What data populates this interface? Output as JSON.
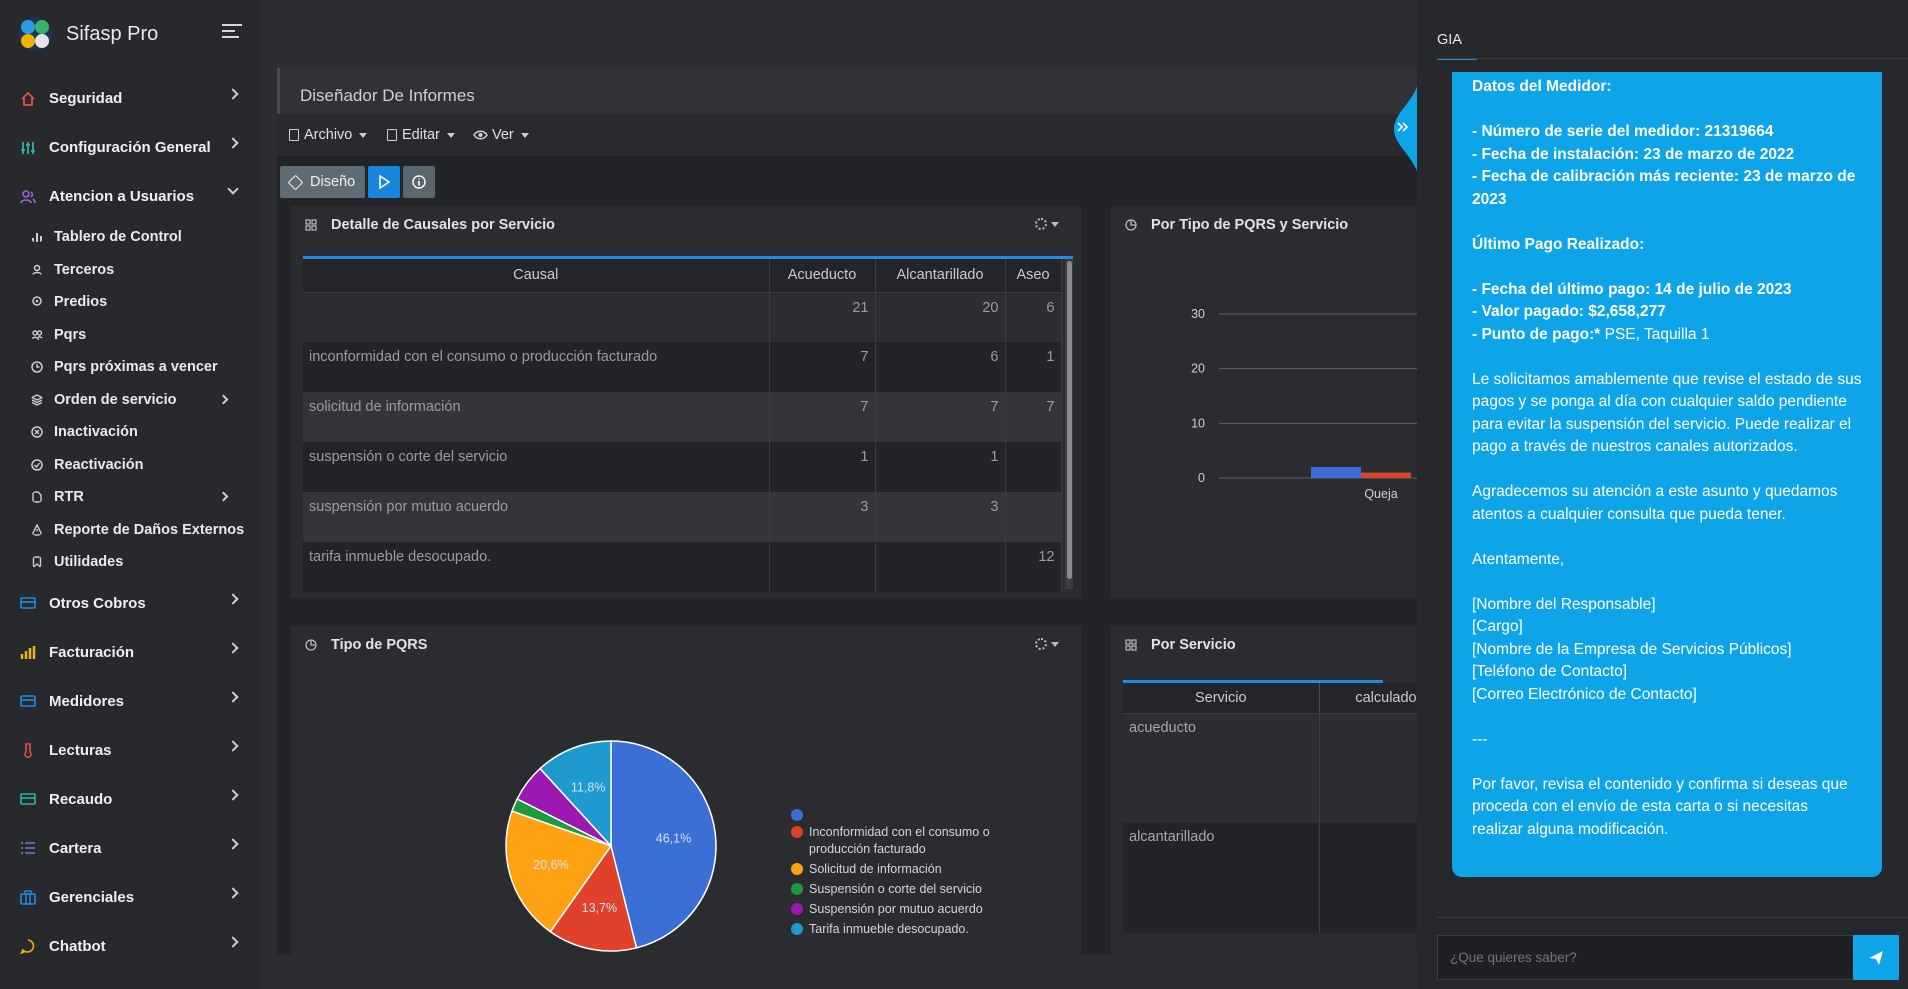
{
  "app": {
    "name": "Sifasp Pro"
  },
  "sidebar": {
    "items": [
      {
        "label": "Seguridad",
        "icon": "home-icon",
        "color": "#e34b4b"
      },
      {
        "label": "Configuración General",
        "icon": "sliders-icon",
        "color": "#2bb5a6"
      },
      {
        "label": "Atencion a Usuarios",
        "icon": "users-icon",
        "color": "#9b6bd6"
      }
    ],
    "sub_items": [
      {
        "label": "Tablero de Control",
        "icon": "bar-chart-icon"
      },
      {
        "label": "Terceros",
        "icon": "user-icon"
      },
      {
        "label": "Predios",
        "icon": "location-pin-icon"
      },
      {
        "label": "Pqrs",
        "icon": "users-icon"
      },
      {
        "label": "Pqrs próximas a vencer",
        "icon": "clock-icon"
      },
      {
        "label": "Orden de servicio",
        "icon": "layers-icon"
      },
      {
        "label": "Inactivación",
        "icon": "x-circle-icon"
      },
      {
        "label": "Reactivación",
        "icon": "check-circle-icon"
      },
      {
        "label": "RTR",
        "icon": "file-icon"
      },
      {
        "label": "Reporte de Daños Externos",
        "icon": "warning-icon"
      },
      {
        "label": "Utilidades",
        "icon": "bookmark-icon"
      }
    ],
    "bottom_items": [
      {
        "label": "Otros Cobros",
        "icon": "card-icon",
        "color": "#1f8ce6"
      },
      {
        "label": "Facturación",
        "icon": "bars-icon",
        "color": "#f0b400"
      },
      {
        "label": "Medidores",
        "icon": "card-icon",
        "color": "#1f8ce6"
      },
      {
        "label": "Lecturas",
        "icon": "thermometer-icon",
        "color": "#e34b4b"
      },
      {
        "label": "Recaudo",
        "icon": "card-icon",
        "color": "#2bb5a6"
      },
      {
        "label": "Cartera",
        "icon": "list-icon",
        "color": "#6b7bd6"
      },
      {
        "label": "Gerenciales",
        "icon": "briefcase-icon",
        "color": "#1f8ce6"
      },
      {
        "label": "Chatbot",
        "icon": "chat-icon",
        "color": "#f0b400"
      }
    ]
  },
  "designer": {
    "title": "Diseñador De Informes",
    "menu": [
      "Archivo",
      "Editar",
      "Ver"
    ],
    "design_button": "Diseño"
  },
  "causales_panel": {
    "title": "Detalle de Causales por Servicio",
    "columns": [
      "Causal",
      "Acueducto",
      "Alcantarillado",
      "Aseo"
    ],
    "rows": [
      {
        "causal": "",
        "acueducto": "21",
        "alcantarillado": "20",
        "aseo": "6"
      },
      {
        "causal": "inconformidad con el consumo o producción facturado",
        "acueducto": "7",
        "alcantarillado": "6",
        "aseo": "1"
      },
      {
        "causal": "solicitud de información",
        "acueducto": "7",
        "alcantarillado": "7",
        "aseo": "7"
      },
      {
        "causal": "suspensión o corte del servicio",
        "acueducto": "1",
        "alcantarillado": "1",
        "aseo": ""
      },
      {
        "causal": "suspensión por mutuo acuerdo",
        "acueducto": "3",
        "alcantarillado": "3",
        "aseo": ""
      },
      {
        "causal": "tarifa inmueble desocupado.",
        "acueducto": "",
        "alcantarillado": "",
        "aseo": "12"
      }
    ]
  },
  "tipo_servicio_panel": {
    "title": "Por Tipo de PQRS y Servicio"
  },
  "chart_data": [
    {
      "type": "bar",
      "title": "Por Tipo de PQRS y Servicio",
      "categories": [
        "Queja"
      ],
      "series": [
        {
          "color": "#3b6fd6",
          "values": [
            2
          ]
        },
        {
          "color": "#d8432b",
          "values": [
            1
          ]
        }
      ],
      "yticks": [
        "30",
        "20",
        "10",
        "0"
      ],
      "ylim": [
        0,
        30
      ]
    },
    {
      "type": "pie",
      "title": "Tipo de PQRS",
      "slices": [
        {
          "label": "",
          "value": 46.1,
          "text": "46,1%",
          "color": "#3b6fd6"
        },
        {
          "label": "Inconformidad con el consumo o producción facturado",
          "value": 13.7,
          "text": "13,7%",
          "color": "#e0412b"
        },
        {
          "label": "Solicitud de información",
          "value": 20.6,
          "text": "20,6%",
          "color": "#ffa211"
        },
        {
          "label": "Suspensión o corte del servicio",
          "value": 2.0,
          "text": "",
          "color": "#1c9a3c"
        },
        {
          "label": "Suspensión por mutuo acuerdo",
          "value": 5.8,
          "text": "",
          "color": "#9b19b0"
        },
        {
          "label": "Tarifa inmueble desocupado.",
          "value": 11.8,
          "text": "11,8%",
          "color": "#1f9ad0"
        }
      ]
    }
  ],
  "tipo_pqrs_panel": {
    "title": "Tipo de PQRS"
  },
  "servicio_panel": {
    "title": "Por Servicio",
    "columns": [
      "Servicio",
      "calculado"
    ],
    "rows": [
      "acueducto",
      "alcantarillado"
    ]
  },
  "chat": {
    "tab": "GIA",
    "placeholder": "¿Que quieres saber?",
    "heading_medidor": "Datos del Medidor:",
    "serie": "- Número de serie del medidor: 21319664",
    "instalacion": "- Fecha de instalación: 23 de marzo de 2022",
    "calibracion": "- Fecha de calibración más reciente: 23 de marzo de 2023",
    "heading_pago": "Último Pago Realizado:",
    "fecha_pago": "- Fecha del último pago: 14 de julio de 2023",
    "valor_pago": "- Valor pagado: $2,658,277",
    "punto_pago_label": "- Punto de pago:*",
    "punto_pago_value": " PSE, Taquilla 1",
    "para1": "Le solicitamos amablemente que revise el estado de sus pagos y se ponga al día con cualquier saldo pendiente para evitar la suspensión del servicio. Puede realizar el pago a través de nuestros canales autorizados.",
    "para2": "Agradecemos su atención a este asunto y quedamos atentos a cualquier consulta que pueda tener.",
    "closing": "Atentamente,",
    "sig1": "[Nombre del Responsable]",
    "sig2": "[Cargo]",
    "sig3": "[Nombre de la Empresa de Servicios Públicos]",
    "sig4": "[Teléfono de Contacto]",
    "sig5": "[Correo Electrónico de Contacto]",
    "separator": "---",
    "para3": "Por favor, revisa el contenido y confirma si deseas que proceda con el envío de esta carta o si necesitas realizar alguna modificación."
  }
}
